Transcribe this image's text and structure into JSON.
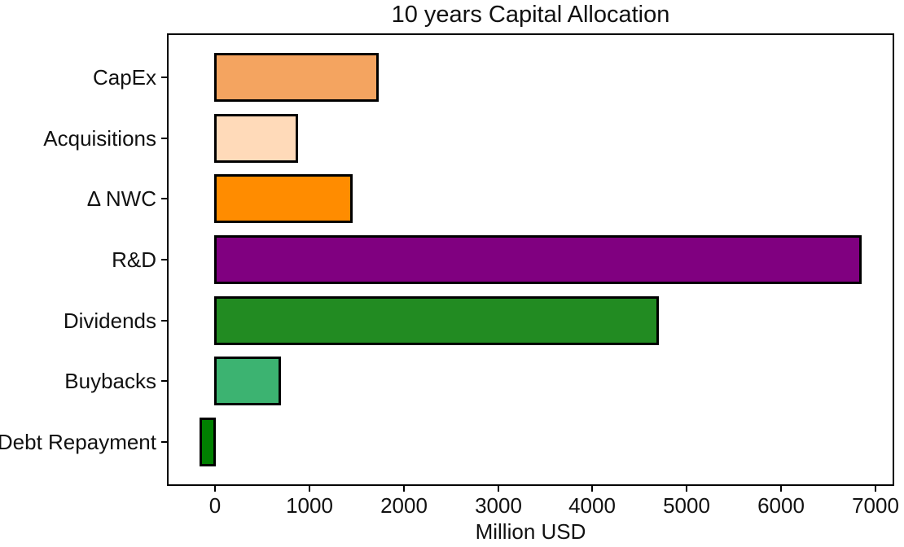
{
  "figure": {
    "background": "#ffffff",
    "text_color": "#111111",
    "spine_color": "#000000"
  },
  "chart_data": {
    "type": "bar",
    "orientation": "horizontal",
    "title": "10 years Capital Allocation",
    "xlabel": "Million USD",
    "ylabel": "",
    "categories": [
      "CapEx",
      "Acquisitions",
      "Δ NWC",
      "R&D",
      "Dividends",
      "Buybacks",
      "Debt Repayment"
    ],
    "values": [
      1730,
      870,
      1450,
      6850,
      4700,
      690,
      -160
    ],
    "bar_colors": [
      "#F4A460",
      "#FFDAB9",
      "#FF8C00",
      "#800080",
      "#228B22",
      "#3CB371",
      "#008000"
    ],
    "bar_edge_color": "#000000",
    "x_ticks": [
      0,
      1000,
      2000,
      3000,
      4000,
      5000,
      6000,
      7000
    ],
    "xlim": [
      -510,
      7200
    ],
    "grid": false,
    "legend": false
  }
}
